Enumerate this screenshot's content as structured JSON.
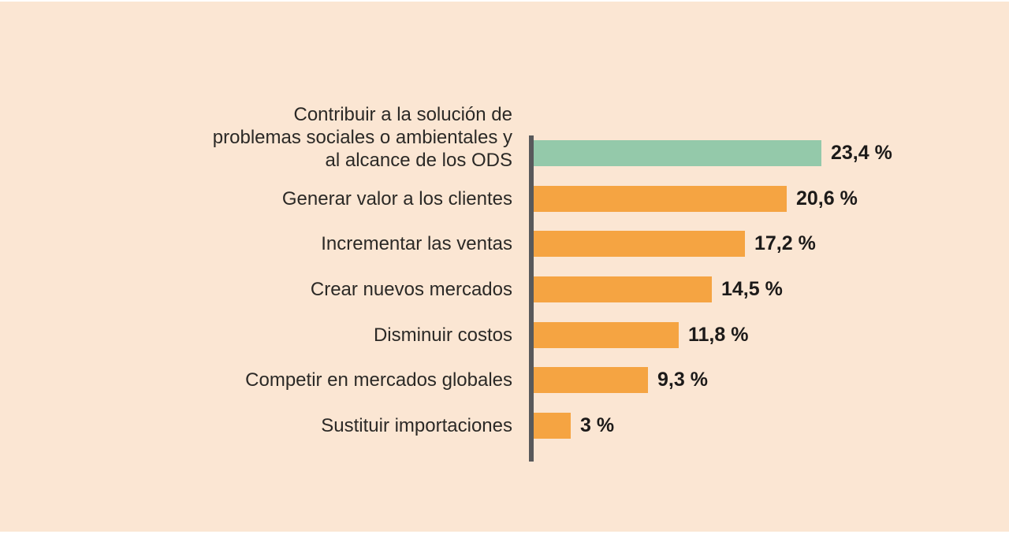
{
  "background": {
    "panel_color": "#FBE6D3",
    "edge_color": "#FFFFFF"
  },
  "chart_data": {
    "type": "bar",
    "orientation": "horizontal",
    "categories": [
      "Contribuir a la solución de\nproblemas sociales o ambientales y\nal alcance de los ODS",
      "Generar valor a los clientes",
      "Incrementar las ventas",
      "Crear nuevos mercados",
      "Disminuir costos",
      "Competir en mercados globales",
      "Sustituir importaciones"
    ],
    "values": [
      23.4,
      20.6,
      17.2,
      14.5,
      11.8,
      9.3,
      3
    ],
    "value_labels": [
      "23,4 %",
      "20,6 %",
      "17,2 %",
      "14,5 %",
      "11,8 %",
      "9,3 %",
      "3 %"
    ],
    "bar_colors": [
      "#94C9AA",
      "#F5A442",
      "#F5A442",
      "#F5A442",
      "#F5A442",
      "#F5A442",
      "#F5A442"
    ],
    "highlight_color": "#94C9AA",
    "default_bar_color": "#F5A442",
    "axis_line_color": "#58595B",
    "label_color": "#2B2926",
    "value_color": "#1C1A19",
    "xlim": [
      0,
      25
    ],
    "grid": false,
    "legend": false,
    "value_decimal_separator": ","
  }
}
